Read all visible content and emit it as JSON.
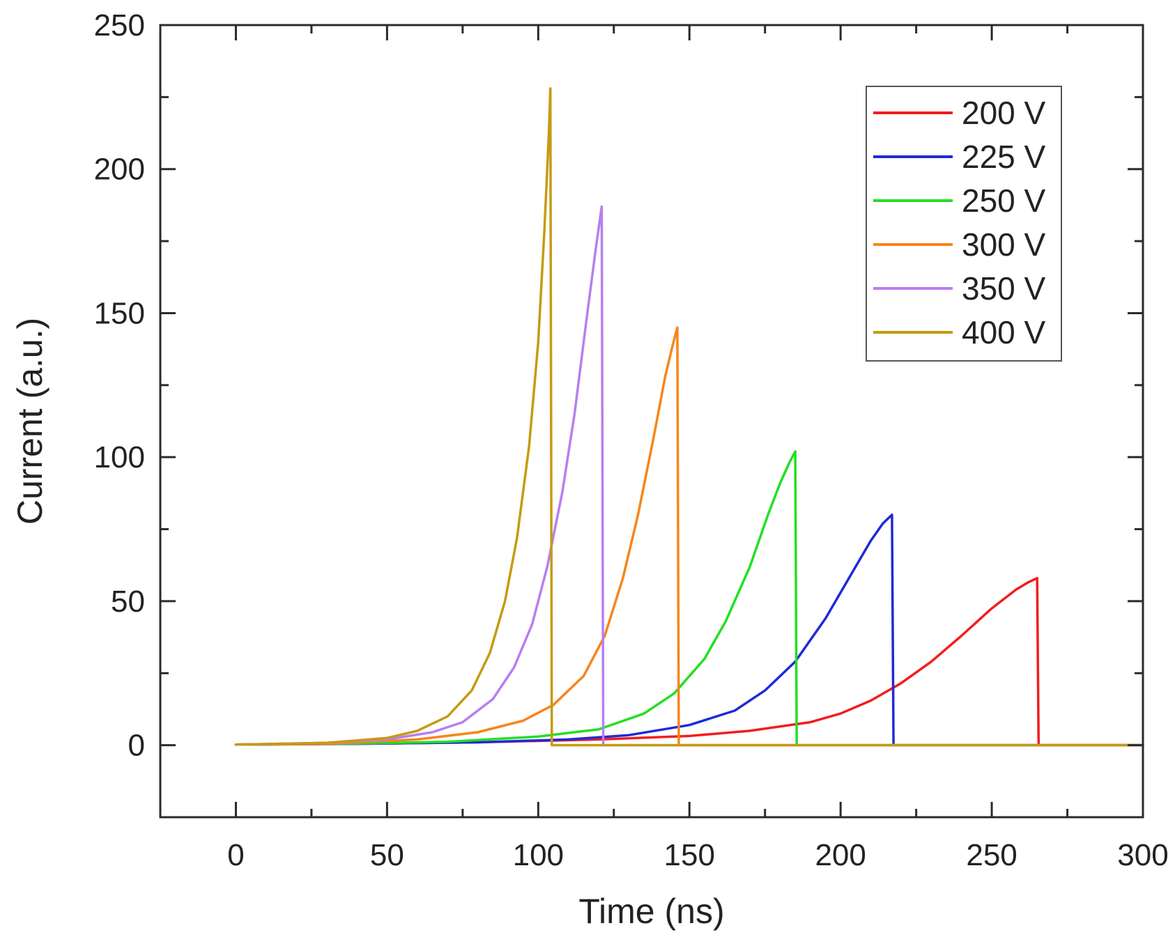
{
  "chart_data": {
    "type": "line",
    "xlabel": "Time (ns)",
    "ylabel": "Current (a.u.)",
    "xlim": [
      -25,
      300
    ],
    "ylim": [
      -25,
      250
    ],
    "xticks": [
      0,
      50,
      100,
      150,
      200,
      250,
      300
    ],
    "yticks": [
      0,
      50,
      100,
      150,
      200,
      250
    ],
    "xtick_labels": [
      "0",
      "50",
      "100",
      "150",
      "200",
      "250",
      "300"
    ],
    "ytick_labels": [
      "0",
      "50",
      "100",
      "150",
      "200",
      "250"
    ],
    "legend_position": "top-right",
    "grid": false,
    "series": [
      {
        "name": "200 V",
        "color": "#f21d1d",
        "peak_time": 265,
        "peak_current": 58,
        "end_time": 300,
        "x": [
          0,
          40,
          80,
          120,
          150,
          170,
          190,
          200,
          210,
          220,
          230,
          240,
          250,
          258,
          262,
          265,
          265.5,
          300
        ],
        "y": [
          0.2,
          0.5,
          1.0,
          2.0,
          3.2,
          5.0,
          8.0,
          11.0,
          15.5,
          21.5,
          29.0,
          38.0,
          47.5,
          54.0,
          56.5,
          58.0,
          0,
          0
        ]
      },
      {
        "name": "225 V",
        "color": "#1f2ad8",
        "peak_time": 217,
        "peak_current": 80,
        "end_time": 300,
        "x": [
          0,
          40,
          80,
          110,
          130,
          150,
          165,
          175,
          185,
          195,
          205,
          210,
          214,
          217,
          217.5,
          300
        ],
        "y": [
          0.2,
          0.5,
          1.0,
          2.0,
          3.5,
          7.0,
          12.0,
          19.0,
          29.0,
          44.0,
          62.0,
          71.0,
          77.0,
          80.0,
          0,
          0
        ]
      },
      {
        "name": "250 V",
        "color": "#22e022",
        "peak_time": 185,
        "peak_current": 102,
        "end_time": 300,
        "x": [
          0,
          40,
          70,
          100,
          120,
          135,
          145,
          155,
          162,
          170,
          176,
          180,
          183,
          185,
          185.5,
          300
        ],
        "y": [
          0.2,
          0.6,
          1.2,
          3.0,
          5.5,
          11.0,
          18.0,
          30.0,
          43.0,
          62.0,
          80.0,
          91.0,
          98.0,
          102.0,
          0,
          0
        ]
      },
      {
        "name": "300 V",
        "color": "#f7851b",
        "peak_time": 146,
        "peak_current": 145,
        "end_time": 300,
        "x": [
          0,
          30,
          60,
          80,
          95,
          105,
          115,
          122,
          128,
          133,
          138,
          142,
          144.5,
          146,
          146.5,
          300
        ],
        "y": [
          0.2,
          0.5,
          2.0,
          4.5,
          8.5,
          14.0,
          24.0,
          38.0,
          58.0,
          80.0,
          106.0,
          128.0,
          139.0,
          145.0,
          0,
          0
        ]
      },
      {
        "name": "350 V",
        "color": "#b77ff0",
        "peak_time": 121,
        "peak_current": 187,
        "end_time": 300,
        "x": [
          0,
          30,
          50,
          65,
          75,
          85,
          92,
          98,
          103,
          108,
          112,
          116,
          119,
          121,
          121.5,
          300
        ],
        "y": [
          0.2,
          0.8,
          2.0,
          4.5,
          8.0,
          16.0,
          27.0,
          42.0,
          62.0,
          88.0,
          115.0,
          148.0,
          172.0,
          187.0,
          0,
          0
        ]
      },
      {
        "name": "400 V",
        "color": "#c59b12",
        "peak_time": 104,
        "peak_current": 228,
        "end_time": 300,
        "x": [
          0,
          30,
          50,
          60,
          70,
          78,
          84,
          89,
          93,
          97,
          100,
          102,
          103.5,
          104,
          104.5,
          300
        ],
        "y": [
          0.2,
          0.8,
          2.5,
          5.0,
          10.0,
          19.0,
          32.0,
          50.0,
          72.0,
          104.0,
          140.0,
          178.0,
          212.0,
          228.0,
          0,
          0
        ]
      }
    ]
  }
}
